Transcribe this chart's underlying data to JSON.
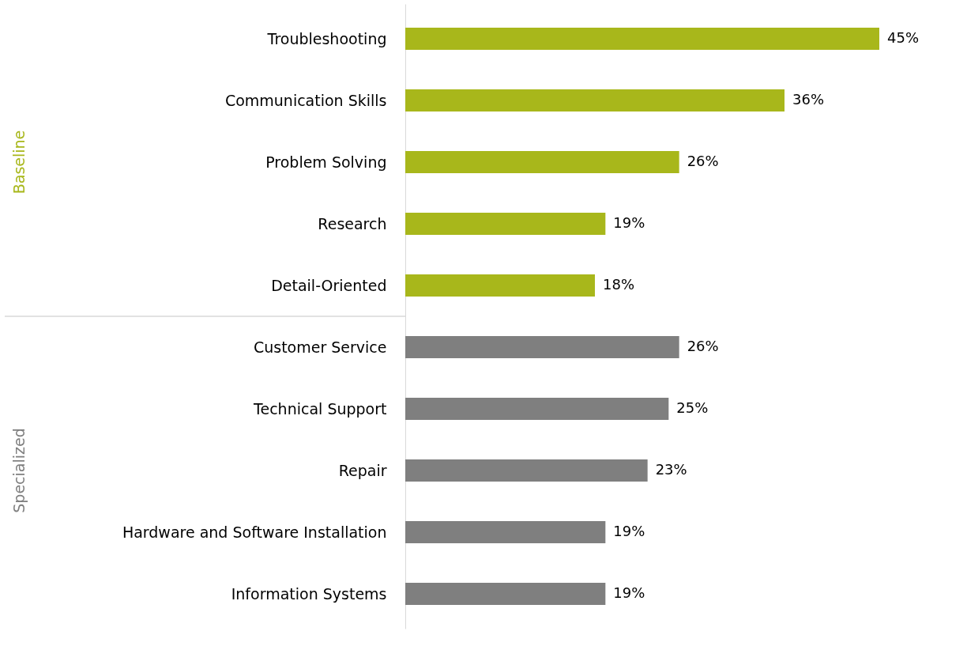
{
  "chart_data": {
    "type": "bar",
    "orientation": "horizontal",
    "categories": [
      "Troubleshooting",
      "Communication Skills",
      "Problem Solving",
      "Research",
      "Detail-Oriented",
      "Customer Service",
      "Technical Support",
      "Repair",
      "Hardware and Software Installation",
      "Information Systems"
    ],
    "series": [
      {
        "name": "Baseline",
        "color": "#a8b71b",
        "values": [
          45,
          36,
          26,
          19,
          18,
          null,
          null,
          null,
          null,
          null
        ],
        "value_labels": [
          "45%",
          "36%",
          "26%",
          "19%",
          "18%",
          null,
          null,
          null,
          null,
          null
        ]
      },
      {
        "name": "Specialized",
        "color": "#7f7f7f",
        "values": [
          null,
          null,
          null,
          null,
          null,
          26,
          25,
          23,
          19,
          19
        ],
        "value_labels": [
          null,
          null,
          null,
          null,
          null,
          "26%",
          "25%",
          "23%",
          "19%",
          "19%"
        ]
      }
    ],
    "tick_labels": "y",
    "grid": false
  }
}
